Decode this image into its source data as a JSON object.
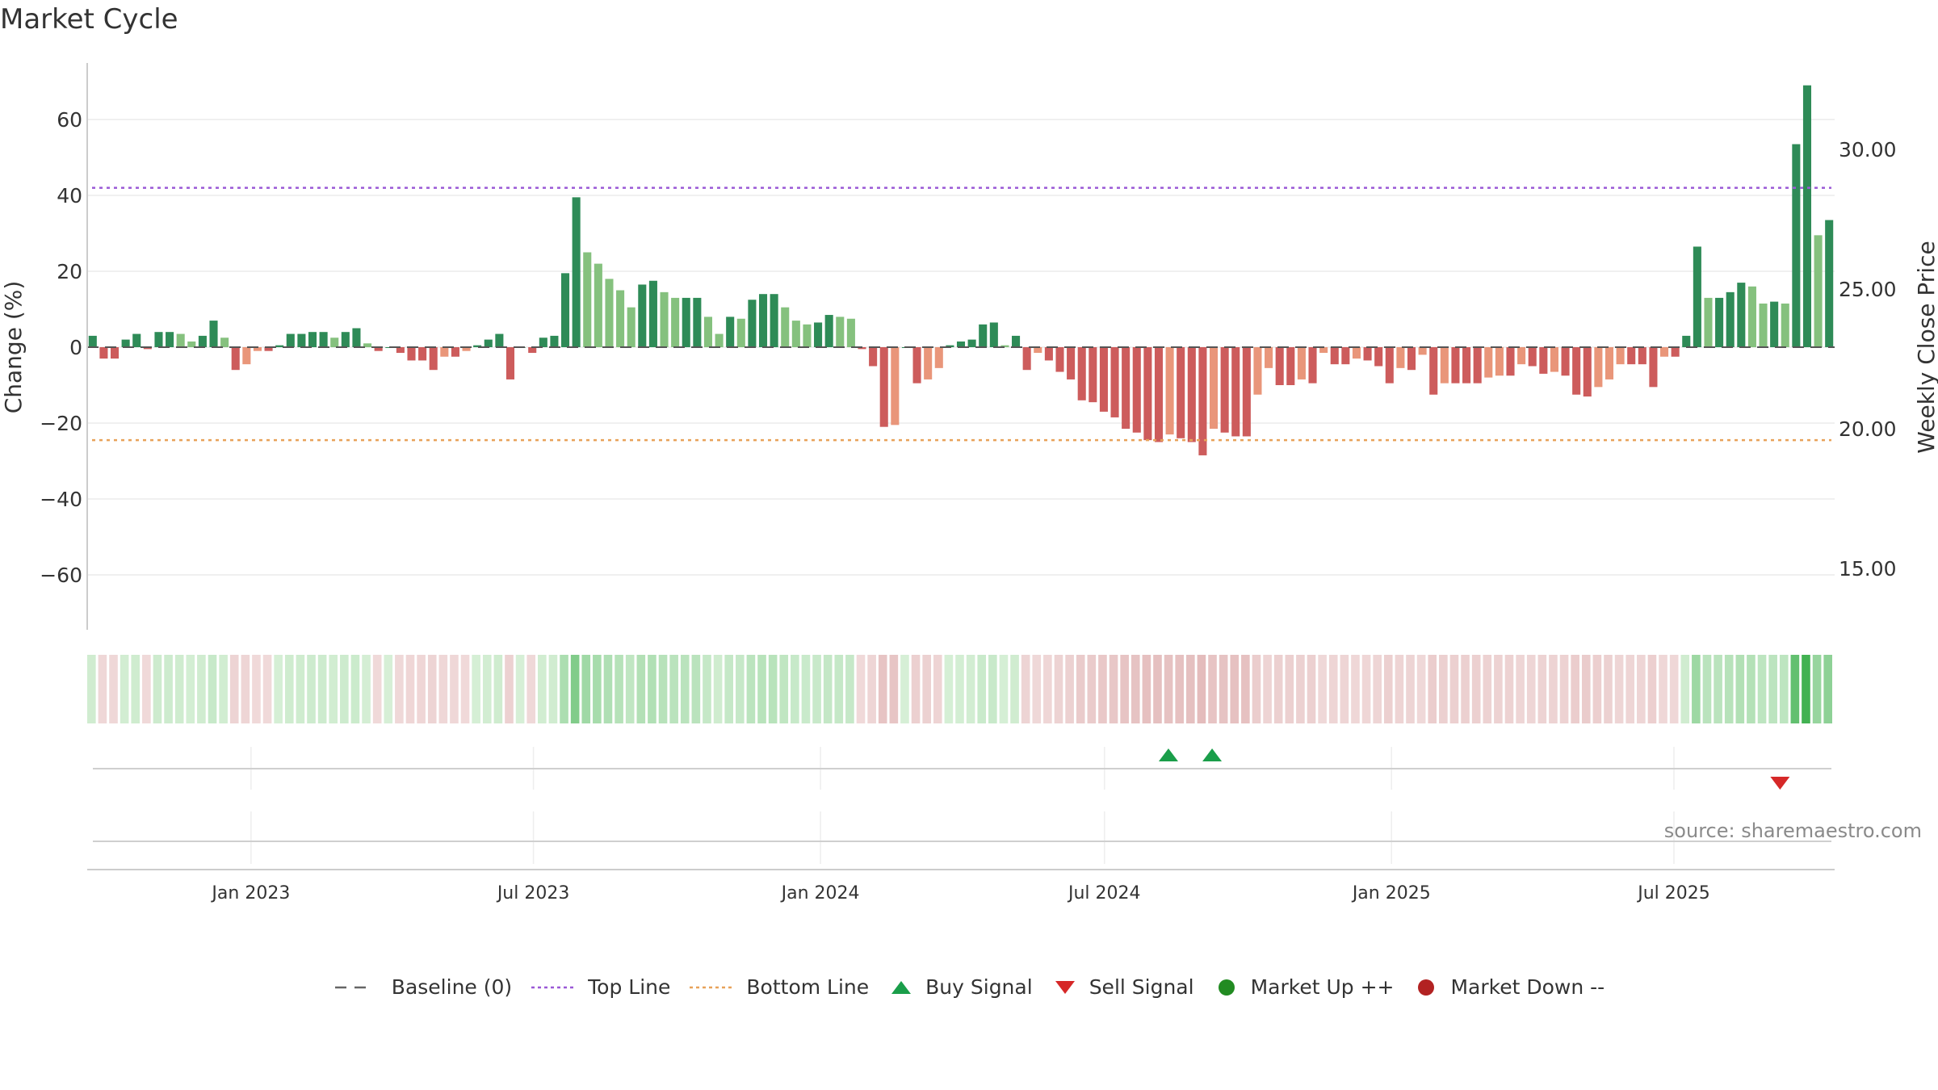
{
  "title": "Market Cycle",
  "source": "source: sharemaestro.com",
  "legend": [
    {
      "label": "Baseline (0)",
      "kind": "dash",
      "color": "#666666"
    },
    {
      "label": "Top Line",
      "kind": "dot",
      "color": "#9b59d6"
    },
    {
      "label": "Bottom Line",
      "kind": "dot",
      "color": "#e8a25a"
    },
    {
      "label": "Buy Signal",
      "kind": "tri-up",
      "color": "#1a9e4a"
    },
    {
      "label": "Sell Signal",
      "kind": "tri-down",
      "color": "#d62828"
    },
    {
      "label": "Market Up ++",
      "kind": "circle",
      "color": "#228b22"
    },
    {
      "label": "Market Down --",
      "kind": "circle",
      "color": "#b22222"
    }
  ],
  "chart_data": {
    "type": "bar",
    "ylabel": "Change (%)",
    "y2label": "Weekly Close Price",
    "ylim": [
      -75,
      75
    ],
    "yticks": [
      60,
      40,
      20,
      0,
      -20,
      -40,
      -60
    ],
    "ytick_labels": [
      "60",
      "40",
      "20",
      "0",
      "−20",
      "−40",
      "−60"
    ],
    "y2lim": [
      12.8,
      33.1
    ],
    "y2ticks": [
      30,
      25,
      20,
      15
    ],
    "y2tick_labels": [
      "30.00",
      "25.00",
      "20.00",
      "15.00"
    ],
    "x_start": "2022-09-18",
    "x_end": "2025-10-12",
    "xticks": [
      {
        "date": "2023-01-01",
        "label": "Jan 2023"
      },
      {
        "date": "2023-07-01",
        "label": "Jul 2023"
      },
      {
        "date": "2024-01-01",
        "label": "Jan 2024"
      },
      {
        "date": "2024-07-01",
        "label": "Jul 2024"
      },
      {
        "date": "2025-01-01",
        "label": "Jan 2025"
      },
      {
        "date": "2025-07-01",
        "label": "Jul 2025"
      }
    ],
    "top_line": 42,
    "bottom_line": -24.5,
    "baseline": 0,
    "colors": {
      "up_strong": "#2e8b57",
      "up_weak": "#85c17e",
      "down_strong": "#cd5c5c",
      "down_weak": "#e9967a",
      "top_line": "#9b59d6",
      "bottom_line": "#e8a25a",
      "buy": "#1a9e4a",
      "sell": "#d62828"
    },
    "series": [
      {
        "values": [
          3,
          -3,
          -3,
          2,
          3.5,
          -0.5,
          4,
          4,
          3.5,
          1.5,
          3,
          7,
          2.5,
          -6,
          -4.5,
          -1,
          -1,
          0.5,
          3.5,
          3.5,
          4,
          4,
          2.5,
          4,
          5,
          1,
          -1,
          0,
          -1.5,
          -3.5,
          -3.5,
          -6,
          -2.5,
          -2.5,
          -1,
          0.5,
          2,
          3.5,
          -8.5,
          0,
          -1.5,
          2.5,
          3,
          19.5,
          39.5,
          25,
          22,
          18,
          15,
          10.5,
          16.5,
          17.5,
          14.5,
          13,
          13,
          13,
          8,
          3.5,
          8,
          7.5,
          12.5,
          14,
          14,
          10.5,
          7,
          6,
          6.5,
          8.5,
          8,
          7.5,
          -0.5,
          -5,
          -21,
          -20.5,
          0,
          -9.5,
          -8.5,
          -5.5,
          0.5,
          1.5,
          2,
          6,
          6.5,
          0.5,
          3,
          -6,
          -1.5,
          -3.5,
          -6.5,
          -8.5,
          -14,
          -14.5,
          -17,
          -18.5,
          -21.5,
          -22.5,
          -24.5,
          -25,
          -23,
          -24,
          -25,
          -28.5,
          -21.5,
          -22.5,
          -23.5,
          -23.5,
          -12.5,
          -5.5,
          -10,
          -10,
          -8.5,
          -9.5,
          -1.5,
          -4.5,
          -4.5,
          -3,
          -3.5,
          -5,
          -9.5,
          -5.5,
          -6,
          -2,
          -12.5,
          -9.5,
          -9.5,
          -9.5,
          -9.5,
          -8,
          -7.5,
          -7.5,
          -4.5,
          -5,
          -7,
          -6.5,
          -7.5,
          -12.5,
          -13,
          -10.5,
          -8.5,
          -4.5,
          -4.5,
          -4.5,
          -10.5,
          -2.5,
          -2.5,
          3,
          26.5,
          13,
          13,
          14.5,
          17,
          16,
          11.5,
          12,
          11.5,
          53.5,
          69,
          29.5,
          33.5
        ]
      }
    ],
    "buy_signals": [
      "2024-08-11",
      "2024-09-08"
    ],
    "sell_signals": [
      "2025-09-07"
    ],
    "market_up": [],
    "market_down": []
  }
}
